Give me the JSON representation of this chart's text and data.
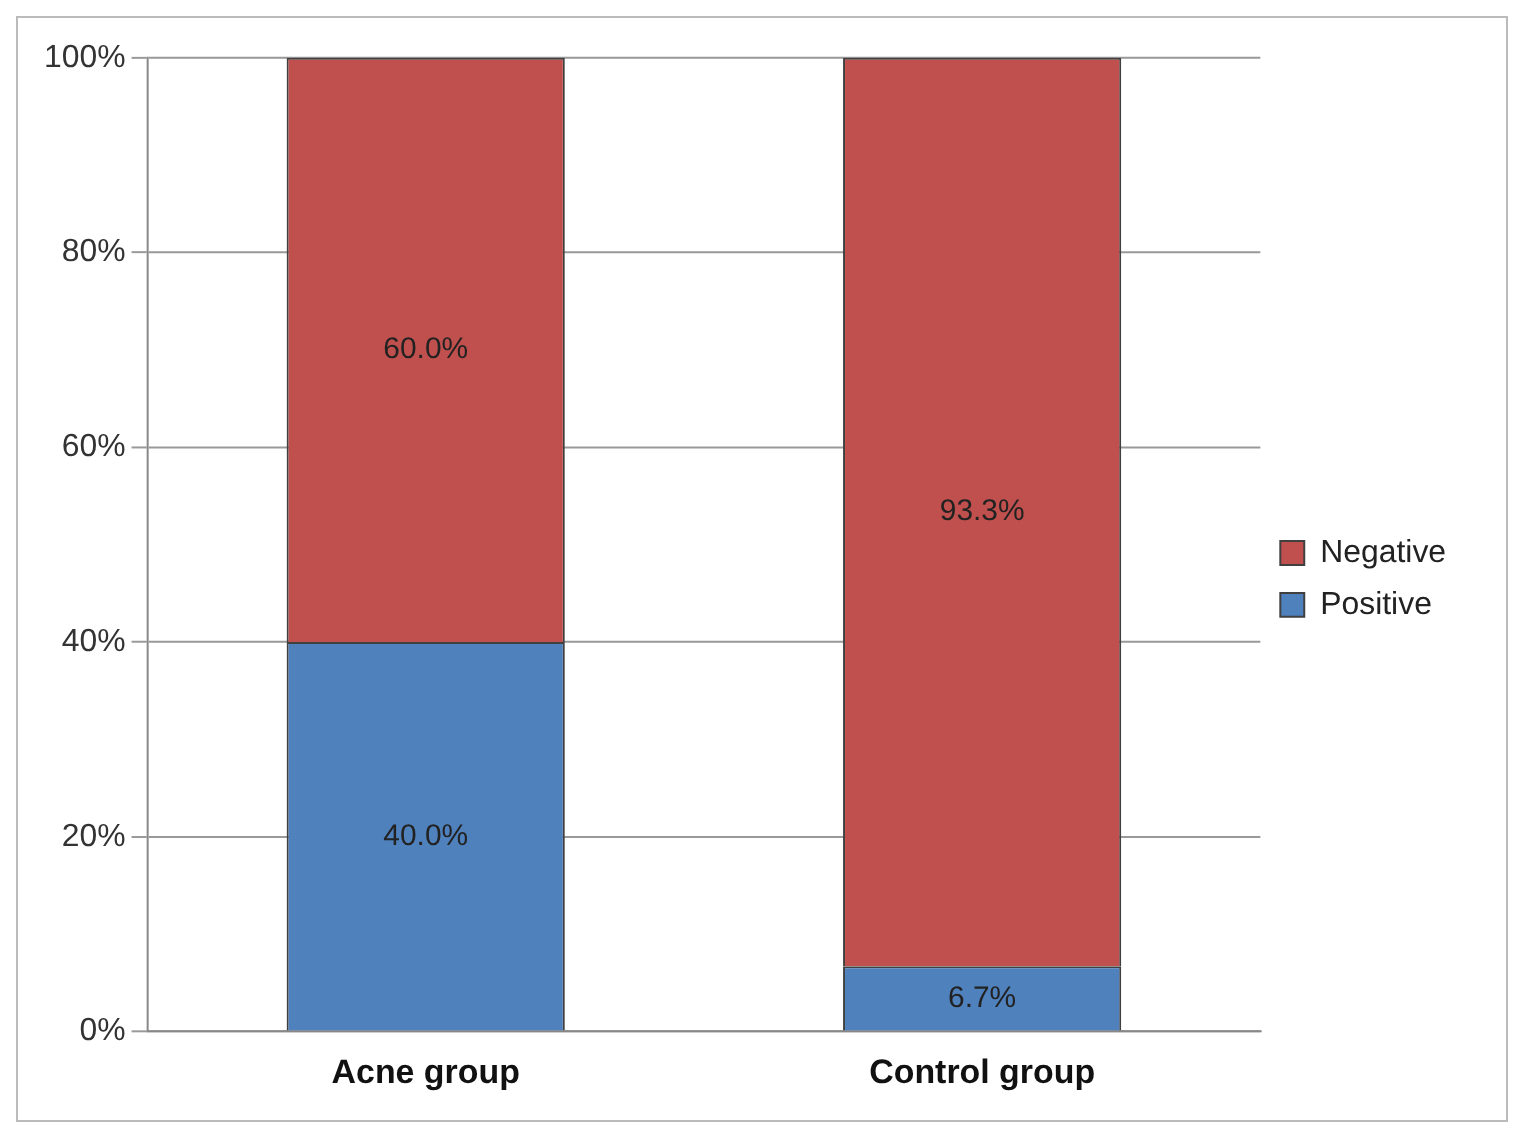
{
  "chart_data": {
    "type": "bar",
    "stacked": true,
    "categories": [
      "Acne group",
      "Control group"
    ],
    "series": [
      {
        "name": "Positive",
        "color": "#4f81bd",
        "values": [
          40.0,
          6.7
        ],
        "value_labels": [
          "40.0%",
          "6.7%"
        ]
      },
      {
        "name": "Negative",
        "color": "#c0504d",
        "values": [
          60.0,
          93.3
        ],
        "value_labels": [
          "60.0%",
          "93.3%"
        ]
      }
    ],
    "ylim": [
      0,
      100
    ],
    "yticks": [
      {
        "value": 0,
        "label": "0%"
      },
      {
        "value": 20,
        "label": "20%"
      },
      {
        "value": 40,
        "label": "40%"
      },
      {
        "value": 60,
        "label": "60%"
      },
      {
        "value": 80,
        "label": "80%"
      },
      {
        "value": 100,
        "label": "100%"
      }
    ],
    "grid": "y",
    "legend": "right"
  }
}
